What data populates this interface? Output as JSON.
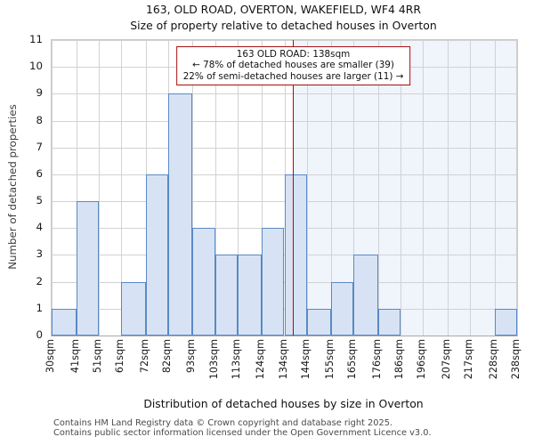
{
  "header": {
    "title": "163, OLD ROAD, OVERTON, WAKEFIELD, WF4 4RR",
    "subtitle": "Size of property relative to detached houses in Overton"
  },
  "annotation": {
    "line1": "163 OLD ROAD: 138sqm",
    "line2": "← 78% of detached houses are smaller (39)",
    "line3": "22% of semi-detached houses are larger (11) →"
  },
  "chart_data": {
    "type": "bar",
    "title": "Size of property relative to detached houses in Overton",
    "xlabel": "Distribution of detached houses by size in Overton",
    "ylabel": "Number of detached properties",
    "bin_edges_sqm": [
      30,
      41,
      51,
      61,
      72,
      82,
      93,
      103,
      113,
      124,
      134,
      144,
      155,
      165,
      176,
      186,
      196,
      207,
      217,
      228,
      238
    ],
    "categories": [
      "30sqm",
      "41sqm",
      "51sqm",
      "61sqm",
      "72sqm",
      "82sqm",
      "93sqm",
      "103sqm",
      "113sqm",
      "124sqm",
      "134sqm",
      "144sqm",
      "155sqm",
      "165sqm",
      "176sqm",
      "186sqm",
      "196sqm",
      "207sqm",
      "217sqm",
      "228sqm",
      "238sqm"
    ],
    "values": [
      1,
      5,
      0,
      2,
      6,
      9,
      4,
      3,
      3,
      4,
      6,
      1,
      2,
      3,
      1,
      0,
      0,
      0,
      0,
      1
    ],
    "ylim": [
      0,
      11
    ],
    "yticks": [
      0,
      1,
      2,
      3,
      4,
      5,
      6,
      7,
      8,
      9,
      10,
      11
    ],
    "marker_value_sqm": 138,
    "grid": true,
    "legend": "none",
    "colors": {
      "bar_fill": "#d7e3f4",
      "bar_edge": "#5a89c4",
      "grid": "#d2d2d2",
      "marker_line": "#c40000",
      "annotation_border": "#a50f0f",
      "shade_right_of_marker": "#f0f4fb",
      "background": "#ffffff"
    }
  },
  "footer": {
    "line1": "Contains HM Land Registry data © Crown copyright and database right 2025.",
    "line2": "Contains public sector information licensed under the Open Government Licence v3.0."
  }
}
